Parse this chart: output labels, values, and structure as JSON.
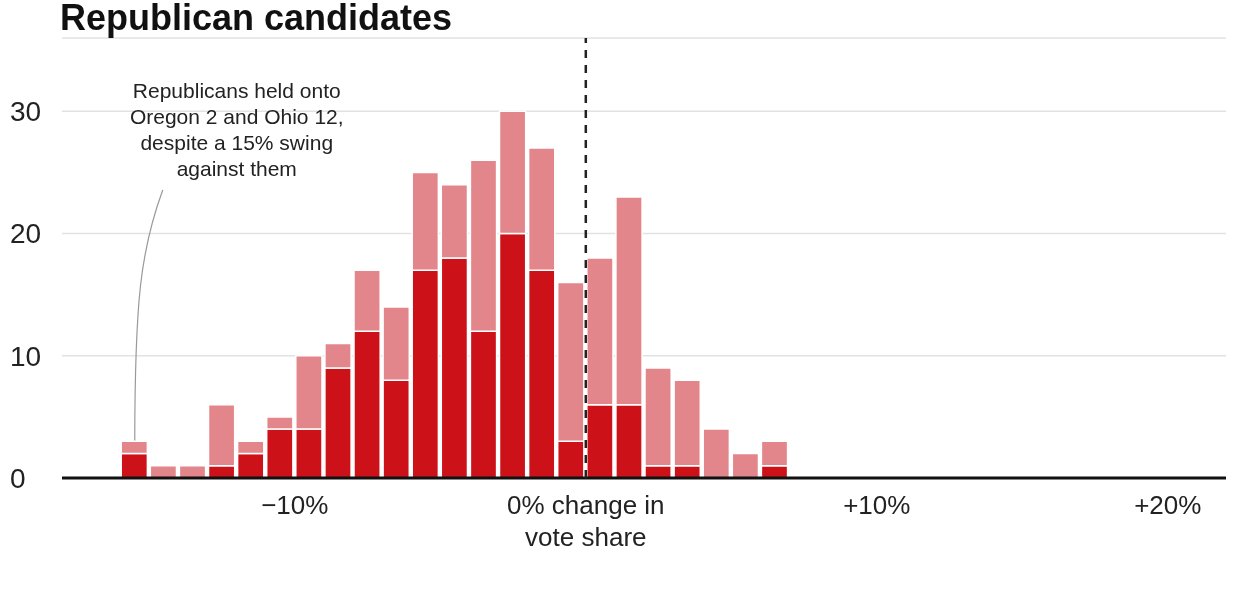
{
  "chart_data": {
    "type": "bar",
    "title": "Republican candidates",
    "x": [
      -15.5,
      -14.5,
      -13.5,
      -12.5,
      -11.5,
      -10.5,
      -9.5,
      -8.5,
      -7.5,
      -6.5,
      -5.5,
      -4.5,
      -3.5,
      -2.5,
      -1.5,
      -0.5,
      0.5,
      1.5,
      2.5,
      3.5,
      4.5,
      5.5,
      6.5
    ],
    "stacked": true,
    "series": [
      {
        "color": "#cc1118",
        "values": [
          2,
          0,
          0,
          1,
          2,
          4,
          4,
          9,
          12,
          8,
          17,
          18,
          12,
          20,
          17,
          3,
          6,
          6,
          1,
          1,
          0,
          0,
          1
        ]
      },
      {
        "color": "#e3868c",
        "values": [
          1,
          1,
          1,
          5,
          1,
          1,
          6,
          2,
          5,
          6,
          8,
          6,
          14,
          10,
          10,
          13,
          12,
          17,
          8,
          7,
          4,
          2,
          2
        ]
      }
    ],
    "xlim": [
      -18,
      22
    ],
    "xticks": [
      {
        "value": -10,
        "label": "−10%"
      },
      {
        "value": 0,
        "label": "0% change in vote share"
      },
      {
        "value": 10,
        "label": "+10%"
      },
      {
        "value": 20,
        "label": "+20%"
      }
    ],
    "ylim": [
      0,
      36
    ],
    "yticks": [
      0,
      10,
      20,
      30
    ],
    "grid": "y",
    "ref_lines": [
      {
        "axis": "x",
        "value": 0,
        "line_style": "dashed",
        "color": "#222222"
      }
    ],
    "annotations": [
      {
        "text": "Republicans held onto Oregon 2 and Ohio 12, despite a 15% swing against them",
        "x": -15.5,
        "y": 2
      }
    ]
  }
}
